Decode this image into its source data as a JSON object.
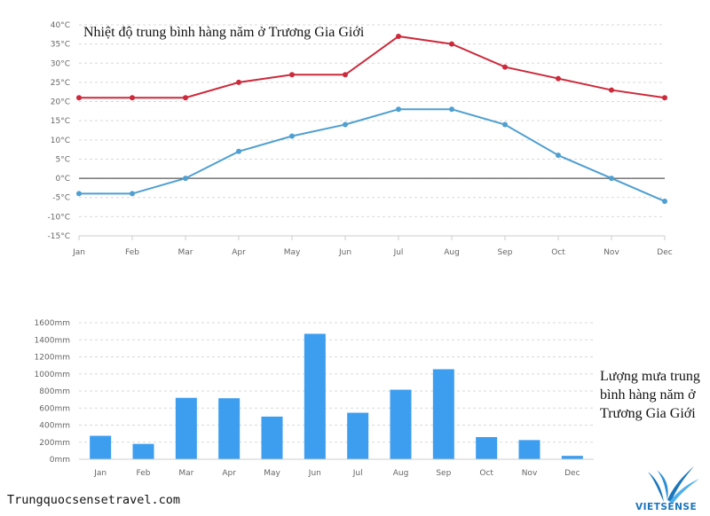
{
  "charts_meta": {
    "watermark": "Trungquocsensetravel.com",
    "logo_text": "VIETSENSE"
  },
  "chart_data": [
    {
      "type": "line",
      "title": "Nhiệt độ trung bình hàng năm ở Trương Gia Giới",
      "categories": [
        "Jan",
        "Feb",
        "Mar",
        "Apr",
        "May",
        "Jun",
        "Jul",
        "Aug",
        "Sep",
        "Oct",
        "Nov",
        "Dec"
      ],
      "series": [
        {
          "values": [
            21,
            21,
            21,
            25,
            27,
            27,
            37,
            35,
            29,
            26,
            23,
            21
          ],
          "color": "#cc2a3b"
        },
        {
          "values": [
            -4,
            -4,
            0,
            7,
            11,
            14,
            18,
            18,
            14,
            6,
            0,
            -6
          ],
          "color": "#4f9fd1"
        }
      ],
      "ylim": [
        -15,
        40
      ],
      "yticks": [
        -15,
        -10,
        -5,
        0,
        5,
        10,
        15,
        20,
        25,
        30,
        35,
        40
      ],
      "ytick_labels": [
        "-15°C",
        "-10°C",
        "-5°C",
        "0°C",
        "5°C",
        "10°C",
        "15°C",
        "20°C",
        "25°C",
        "30°C",
        "35°C",
        "40°C"
      ],
      "grid": true
    },
    {
      "type": "bar",
      "title": "Lượng mưa trung bình hàng năm ở Trương Gia Giới",
      "categories": [
        "Jan",
        "Feb",
        "Mar",
        "Apr",
        "May",
        "Jun",
        "Jul",
        "Aug",
        "Sep",
        "Oct",
        "Nov",
        "Dec"
      ],
      "values": [
        275,
        180,
        720,
        715,
        500,
        1470,
        545,
        815,
        1055,
        260,
        225,
        40
      ],
      "color": "#3d9ef0",
      "ylim": [
        0,
        1600
      ],
      "yticks": [
        0,
        200,
        400,
        600,
        800,
        1000,
        1200,
        1400,
        1600
      ],
      "ytick_labels": [
        "0mm",
        "200mm",
        "400mm",
        "600mm",
        "800mm",
        "1000mm",
        "1200mm",
        "1400mm",
        "1600mm"
      ],
      "grid": true
    }
  ]
}
